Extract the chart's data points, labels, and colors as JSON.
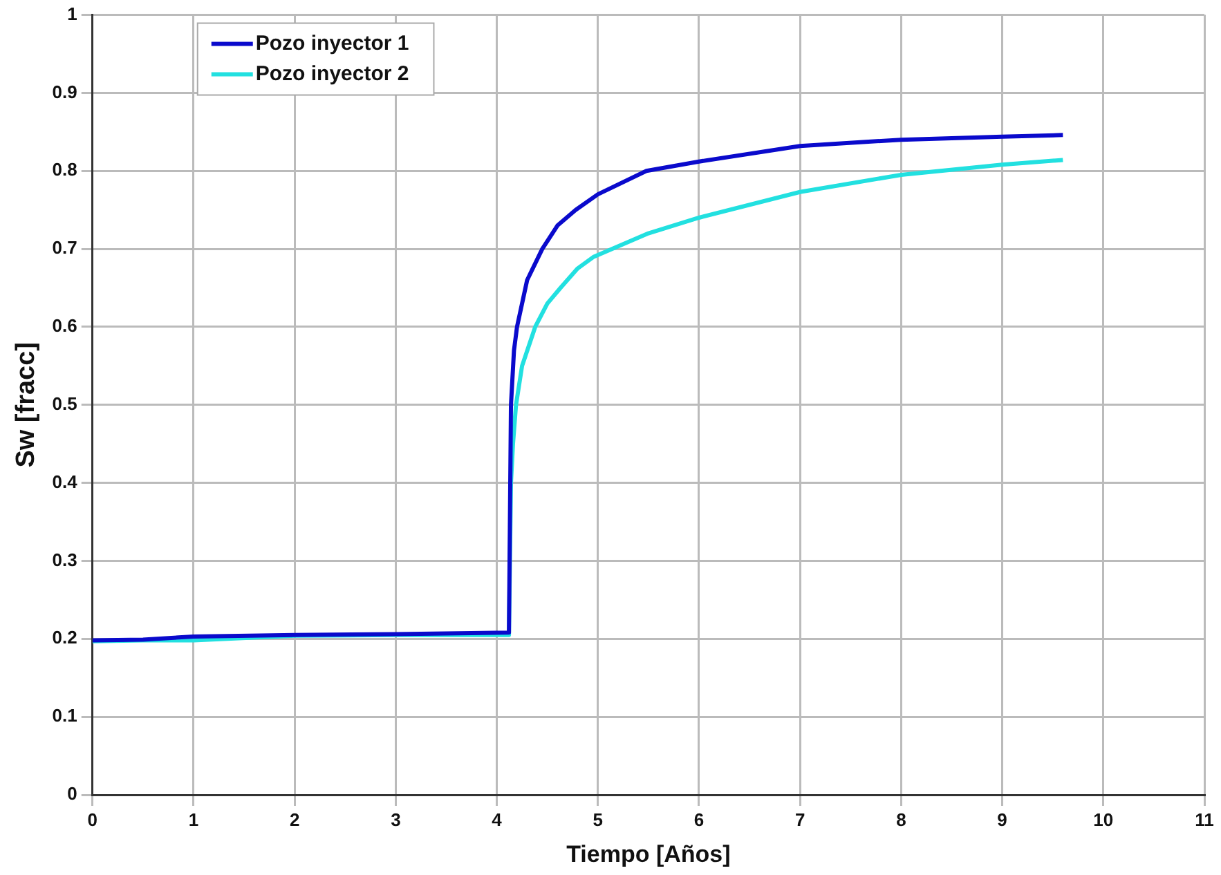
{
  "chart_data": {
    "type": "line",
    "xlabel": "Tiempo [Años]",
    "ylabel": "Sw [fracc]",
    "xlim": [
      0,
      11
    ],
    "xticks": [
      0,
      1,
      2,
      3,
      4,
      5,
      6,
      7,
      8,
      9,
      10,
      11
    ],
    "ylim": [
      0,
      1
    ],
    "yticks": [
      0,
      0.1,
      0.2,
      0.3,
      0.4,
      0.5,
      0.6,
      0.7,
      0.8,
      0.9,
      1
    ],
    "grid": true,
    "legend": "top left",
    "marker": "none",
    "line_style": "solid",
    "series": [
      {
        "name": "Pozo inyector 1",
        "color": "#0a0acc",
        "x": [
          0,
          0.5,
          1,
          2,
          3,
          4.12,
          4.14,
          4.17,
          4.2,
          4.3,
          4.45,
          4.6,
          4.78,
          5,
          5.48,
          6,
          7,
          8,
          9,
          9.6
        ],
        "values": [
          0.198,
          0.199,
          0.203,
          0.205,
          0.206,
          0.208,
          0.5,
          0.57,
          0.6,
          0.66,
          0.7,
          0.73,
          0.75,
          0.77,
          0.8,
          0.812,
          0.832,
          0.84,
          0.844,
          0.846
        ]
      },
      {
        "name": "Pozo inyector 2",
        "color": "#22e0e0",
        "x": [
          0,
          0.5,
          1,
          2,
          3,
          4.12,
          4.14,
          4.16,
          4.19,
          4.25,
          4.38,
          4.5,
          4.63,
          4.8,
          4.96,
          5.5,
          6,
          7,
          8,
          9,
          9.6
        ],
        "values": [
          0.197,
          0.198,
          0.198,
          0.204,
          0.205,
          0.205,
          0.4,
          0.45,
          0.5,
          0.55,
          0.6,
          0.63,
          0.65,
          0.675,
          0.69,
          0.72,
          0.74,
          0.773,
          0.795,
          0.808,
          0.814
        ]
      }
    ]
  }
}
